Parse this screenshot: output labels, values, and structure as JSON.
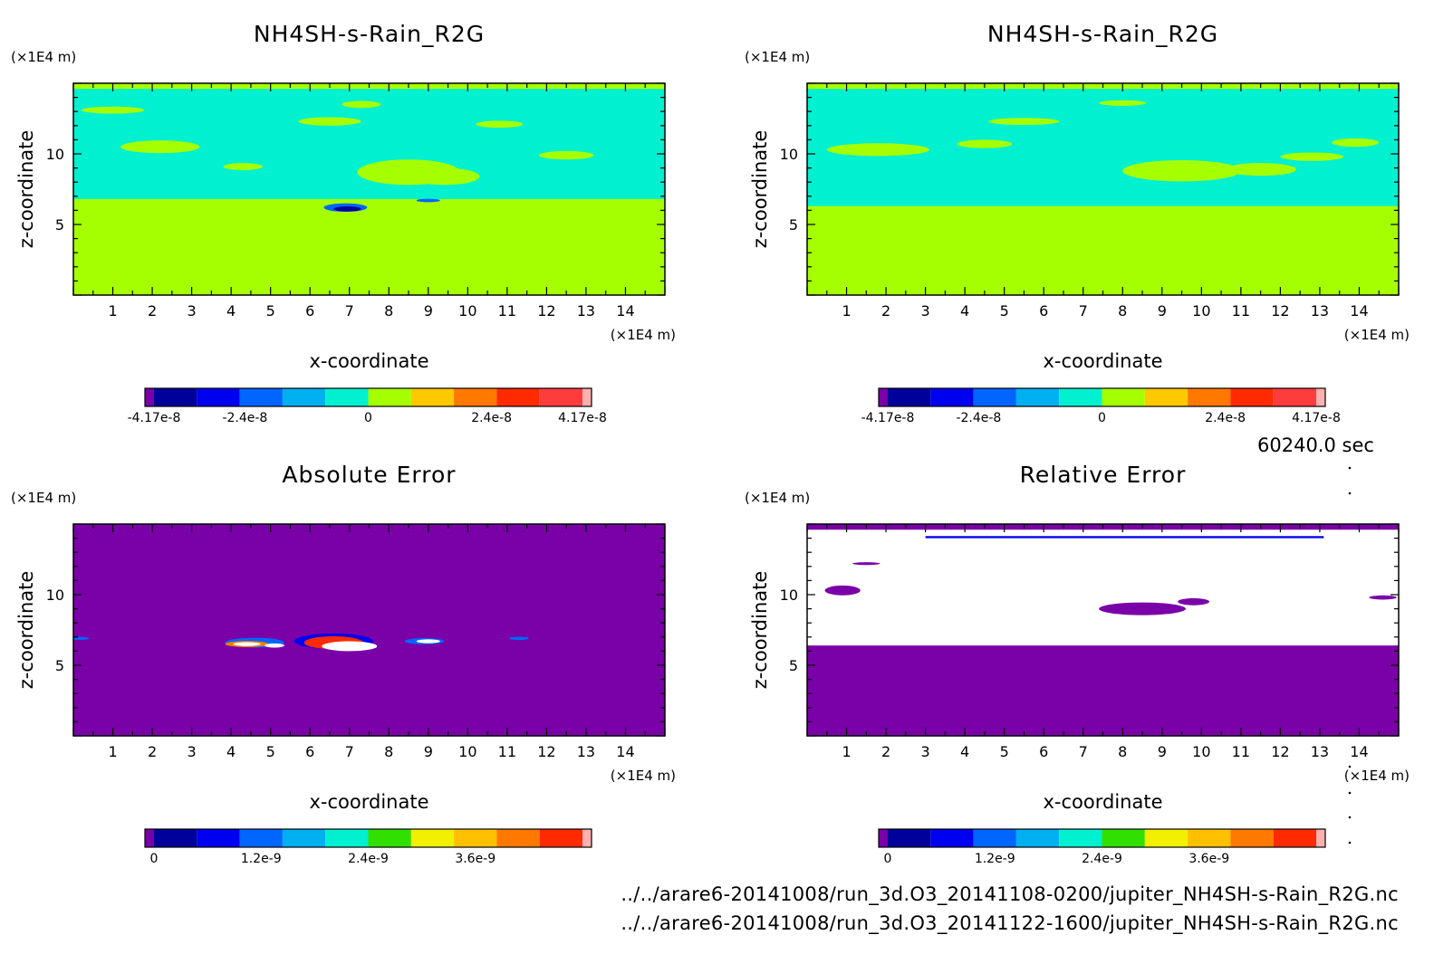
{
  "figure": {
    "time_label": "60240.0 sec",
    "files": [
      "../../arare6-20141008/run_3d.O3_20141108-0200/jupiter_NH4SH-s-Rain_R2G.nc",
      "../../arare6-20141008/run_3d.O3_20141122-1600/jupiter_NH4SH-s-Rain_R2G.nc"
    ]
  },
  "chart_data": [
    {
      "type": "heatmap",
      "title": "NH4SH-s-Rain_R2G",
      "xlabel": "x-coordinate",
      "ylabel": "z-coordinate",
      "x_unit": "(×1E4 m)",
      "y_unit": "(×1E4 m)",
      "xlim": [
        0,
        15
      ],
      "ylim": [
        0,
        15
      ],
      "xticks": [
        1,
        2,
        3,
        4,
        5,
        6,
        7,
        8,
        9,
        10,
        11,
        12,
        13,
        14
      ],
      "yticks": [
        5,
        10
      ],
      "background": "#a6ff00",
      "colorbar": {
        "colors": [
          "#7a00a8",
          "#00009a",
          "#0000f0",
          "#0066ff",
          "#00b0f0",
          "#00f0d0",
          "#a6ff00",
          "#ffc800",
          "#ff7800",
          "#ff2a00",
          "#ff3c3c",
          "#ffb0b0"
        ],
        "tick_labels": [
          "-4.17e-8",
          "-2.4e-8",
          "0",
          "2.4e-8",
          "4.17e-8"
        ],
        "tick_values": [
          -4.17e-08,
          -2.4e-08,
          0,
          2.4e-08,
          4.17e-08
        ],
        "range": [
          -4.17e-08,
          4.17e-08
        ]
      }
    },
    {
      "type": "heatmap",
      "title": "NH4SH-s-Rain_R2G",
      "xlabel": "x-coordinate",
      "ylabel": "z-coordinate",
      "x_unit": "(×1E4 m)",
      "y_unit": "(×1E4 m)",
      "xlim": [
        0,
        15
      ],
      "ylim": [
        0,
        15
      ],
      "xticks": [
        1,
        2,
        3,
        4,
        5,
        6,
        7,
        8,
        9,
        10,
        11,
        12,
        13,
        14
      ],
      "yticks": [
        5,
        10
      ],
      "background": "#a6ff00",
      "colorbar": {
        "colors": [
          "#7a00a8",
          "#00009a",
          "#0000f0",
          "#0066ff",
          "#00b0f0",
          "#00f0d0",
          "#a6ff00",
          "#ffc800",
          "#ff7800",
          "#ff2a00",
          "#ff3c3c",
          "#ffb0b0"
        ],
        "tick_labels": [
          "-4.17e-8",
          "-2.4e-8",
          "0",
          "2.4e-8",
          "4.17e-8"
        ],
        "tick_values": [
          -4.17e-08,
          -2.4e-08,
          0,
          2.4e-08,
          4.17e-08
        ],
        "range": [
          -4.17e-08,
          4.17e-08
        ]
      }
    },
    {
      "type": "heatmap",
      "title": "Absolute Error",
      "xlabel": "x-coordinate",
      "ylabel": "z-coordinate",
      "x_unit": "(×1E4 m)",
      "y_unit": "(×1E4 m)",
      "xlim": [
        0,
        15
      ],
      "ylim": [
        0,
        15
      ],
      "xticks": [
        1,
        2,
        3,
        4,
        5,
        6,
        7,
        8,
        9,
        10,
        11,
        12,
        13,
        14
      ],
      "yticks": [
        5,
        10
      ],
      "background": "#7a00a8",
      "colorbar": {
        "colors": [
          "#7a00a8",
          "#00009a",
          "#0000f0",
          "#0066ff",
          "#00b0f0",
          "#00f0d0",
          "#32e000",
          "#f0f000",
          "#ffc000",
          "#ff7800",
          "#ff2a00",
          "#ffb0b0"
        ],
        "tick_labels": [
          "0",
          "1.2e-9",
          "2.4e-9",
          "3.6e-9"
        ],
        "tick_values": [
          0,
          1.2e-09,
          2.4e-09,
          3.6e-09
        ],
        "range": [
          0,
          4.8e-09
        ]
      }
    },
    {
      "type": "heatmap",
      "title": "Relative Error",
      "xlabel": "x-coordinate",
      "ylabel": "z-coordinate",
      "x_unit": "(×1E4 m)",
      "y_unit": "(×1E4 m)",
      "xlim": [
        0,
        15
      ],
      "ylim": [
        0,
        15
      ],
      "xticks": [
        1,
        2,
        3,
        4,
        5,
        6,
        7,
        8,
        9,
        10,
        11,
        12,
        13,
        14
      ],
      "yticks": [
        5,
        10
      ],
      "background": "#7a00a8",
      "colorbar": {
        "colors": [
          "#7a00a8",
          "#00009a",
          "#0000f0",
          "#0066ff",
          "#00b0f0",
          "#00f0d0",
          "#32e000",
          "#f0f000",
          "#ffc000",
          "#ff7800",
          "#ff2a00",
          "#ffb0b0"
        ],
        "tick_labels": [
          "0",
          "1.2e-9",
          "2.4e-9",
          "3.6e-9"
        ],
        "tick_values": [
          0,
          1.2e-09,
          2.4e-09,
          3.6e-09
        ],
        "range": [
          0,
          4.8e-09
        ]
      }
    }
  ]
}
